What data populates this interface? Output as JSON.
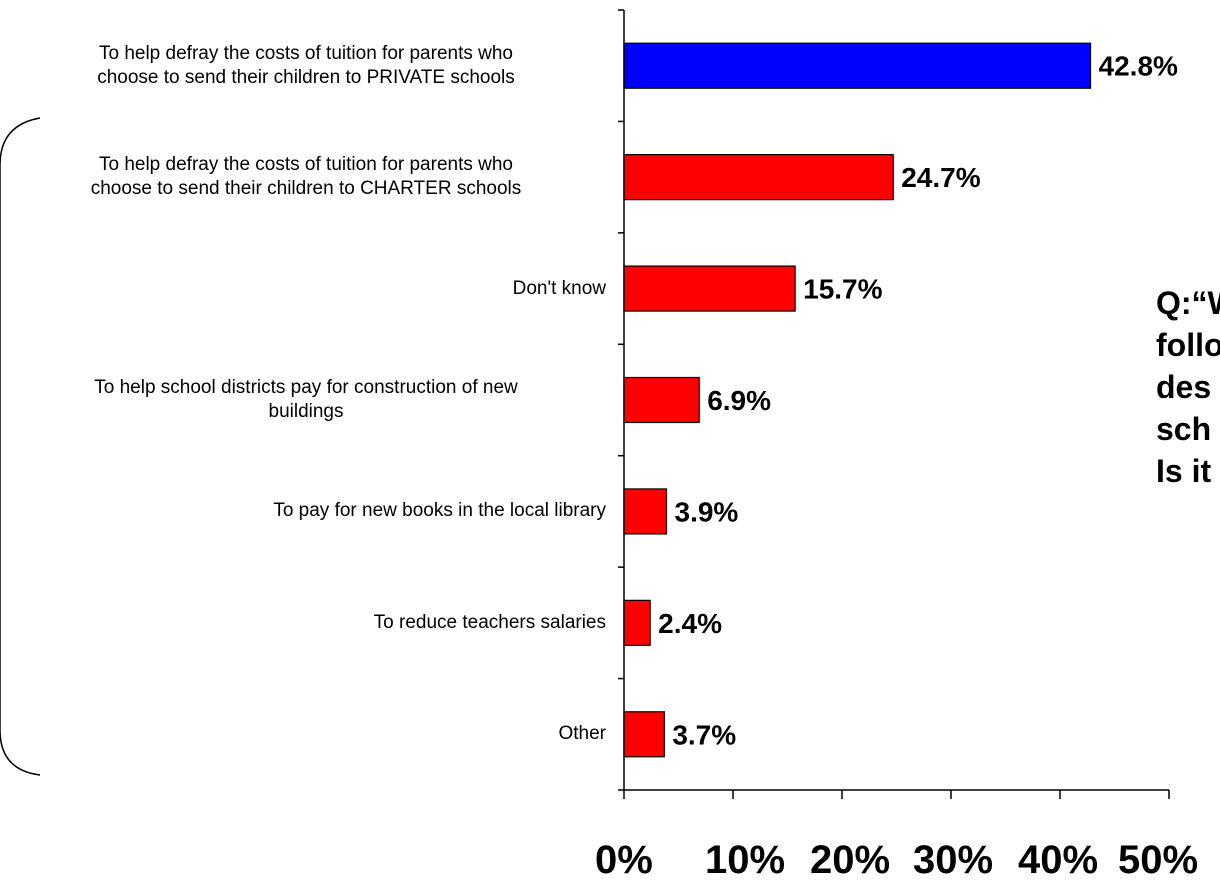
{
  "chart_data": {
    "type": "bar",
    "orientation": "horizontal",
    "categories": [
      "To help defray the costs of tuition for parents who choose to send their children to PRIVATE schools",
      "To help defray the costs of tuition for parents who choose to send their children to CHARTER schools",
      "Don't know",
      "To help school districts pay for construction of new buildings",
      "To pay for new books in the local library",
      "To reduce teachers salaries",
      "Other"
    ],
    "category_lines": [
      [
        "To help defray the costs of tuition for parents who",
        "choose to send their children to PRIVATE schools"
      ],
      [
        "To help defray the costs of tuition for parents who",
        "choose to send their children to CHARTER schools"
      ],
      [
        "Don't know"
      ],
      [
        "To help school districts pay for construction of new",
        "buildings"
      ],
      [
        "To pay for new books in the local library"
      ],
      [
        "To reduce teachers salaries"
      ],
      [
        "Other"
      ]
    ],
    "values": [
      42.8,
      24.7,
      15.7,
      6.9,
      3.9,
      2.4,
      3.7
    ],
    "data_labels": [
      "42.8%",
      "24.7%",
      "15.7%",
      "6.9%",
      "3.9%",
      "2.4%",
      "3.7%"
    ],
    "bar_colors": [
      "#0000FF",
      "#FF0000",
      "#FF0000",
      "#FF0000",
      "#FF0000",
      "#FF0000",
      "#FF0000"
    ],
    "xlim": [
      0,
      50
    ],
    "x_ticks": [
      "0%",
      "10%",
      "20%",
      "30%",
      "40%",
      "50%"
    ],
    "grid": false,
    "legend": "none",
    "annotation": "Q:“W\nfollo\ndes\nsch\nIs it"
  }
}
